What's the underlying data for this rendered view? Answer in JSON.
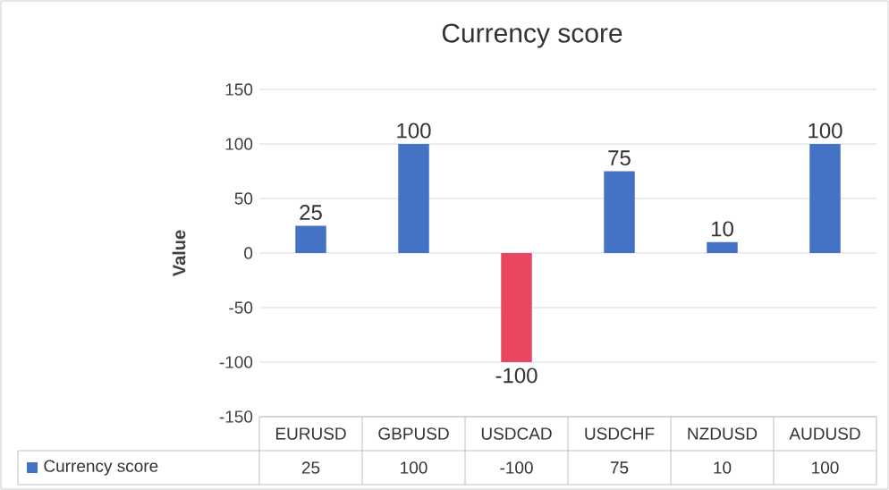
{
  "chart_data": {
    "type": "bar",
    "title": "Currency score",
    "ylabel": "Value",
    "categories": [
      "EURUSD",
      "GBPUSD",
      "USDCAD",
      "USDCHF",
      "NZDUSD",
      "AUDUSD"
    ],
    "series": [
      {
        "name": "Currency score",
        "color": "#4472c4",
        "colors": [
          "#4472c4",
          "#4472c4",
          "#e8475f",
          "#4472c4",
          "#4472c4",
          "#4472c4"
        ],
        "values": [
          25,
          100,
          -100,
          75,
          10,
          100
        ],
        "value_labels": [
          "25",
          "100",
          "-100",
          "75",
          "10",
          "100"
        ]
      }
    ],
    "ylim": [
      -150,
      150
    ],
    "yticks": [
      -150,
      -100,
      -50,
      0,
      50,
      100,
      150
    ],
    "annotations": [
      "25",
      "100",
      "-100",
      "75",
      "10",
      "100"
    ],
    "grid": "y",
    "legend": "bottom"
  }
}
